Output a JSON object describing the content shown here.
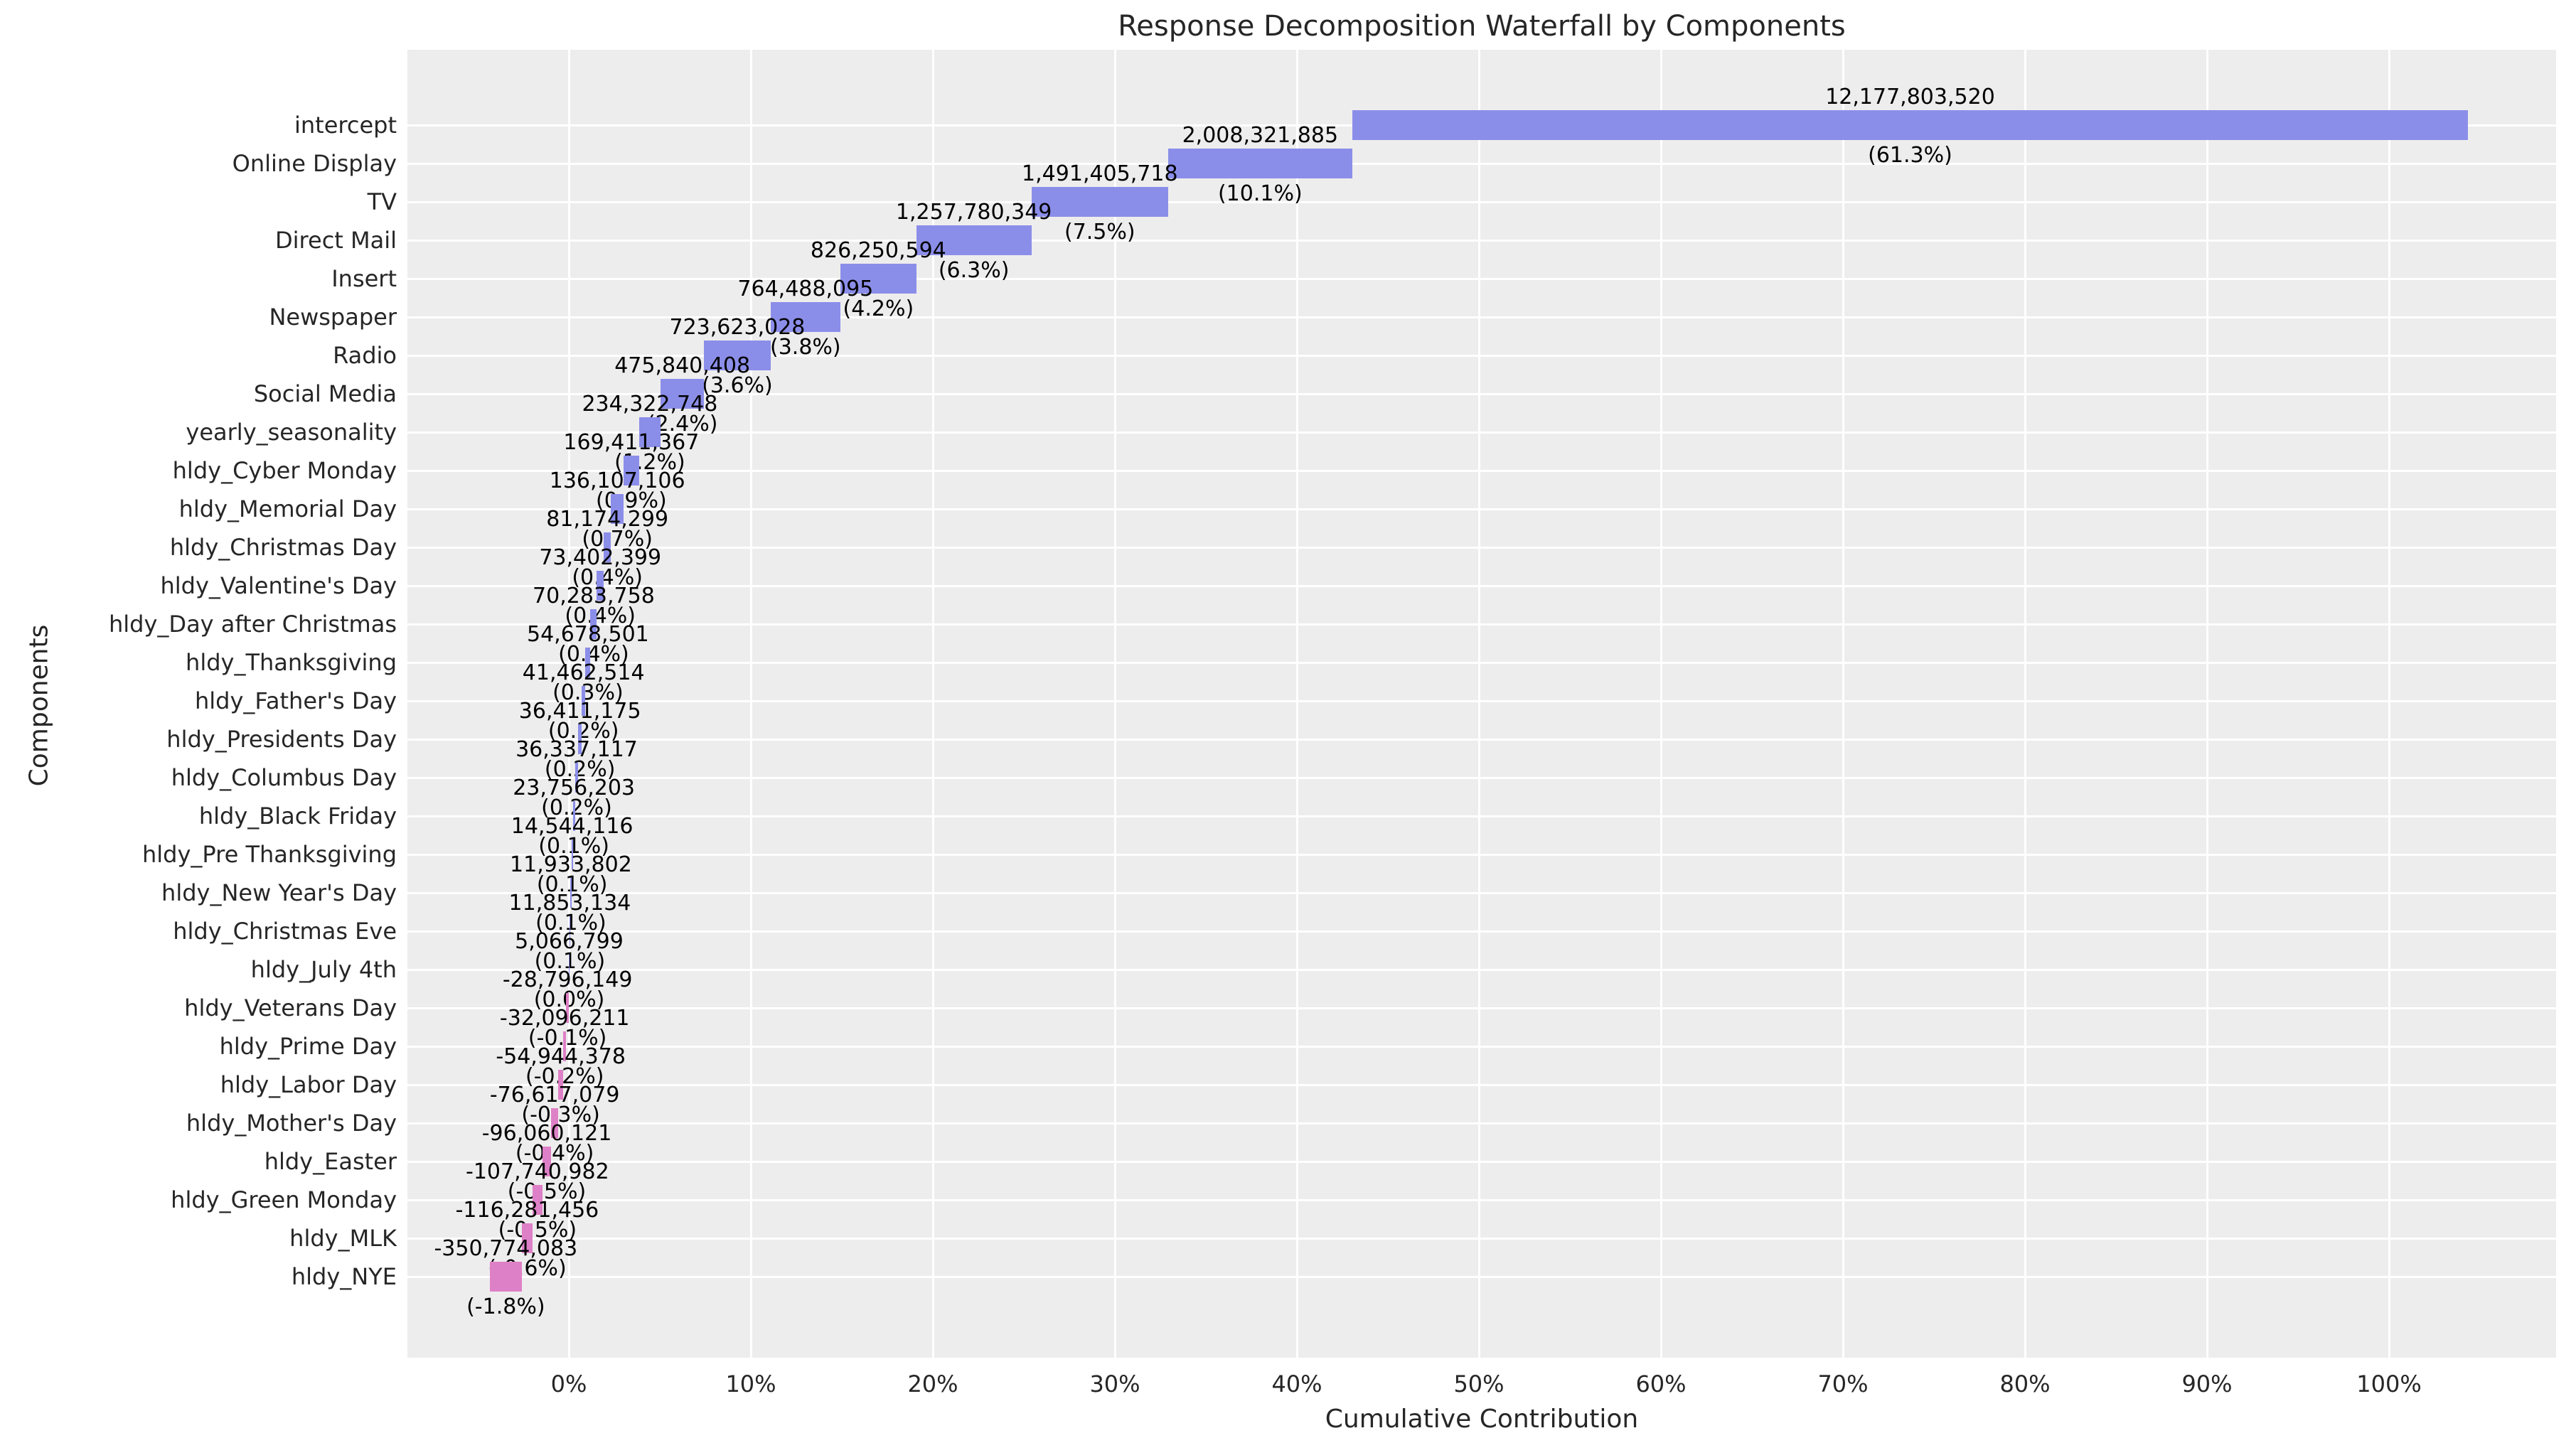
{
  "title": "Response Decomposition Waterfall by Components",
  "axes": {
    "xlabel": "Cumulative Contribution",
    "ylabel": "Components",
    "x_tick_labels": [
      "0%",
      "10%",
      "20%",
      "30%",
      "40%",
      "50%",
      "60%",
      "70%",
      "80%",
      "90%",
      "100%"
    ]
  },
  "colors": {
    "positive_bar": "#8b8ee9",
    "negative_bar": "#de80c7",
    "plot_background": "#eeeded",
    "gridline": "#ffffff",
    "axis_text": "#262626",
    "bar_label_text": "#000000"
  },
  "chart_data": {
    "type": "bar",
    "subtype": "waterfall",
    "orientation": "horizontal",
    "title": "Response Decomposition Waterfall by Components",
    "xlabel": "Cumulative Contribution",
    "ylabel": "Components",
    "x_axis_range_pct": [
      -8.9,
      109.3
    ],
    "x_tick_step_pct": 10,
    "grid": true,
    "legend": false,
    "waterfall_note": "Bars accumulate top-to-bottom; each bar spans [cumulative - value, cumulative]; cumulative starts at the sum of positive components (~104.3% of net total) and ends near -4.3% after negative components.",
    "categories": [
      "intercept",
      "Online Display",
      "TV",
      "Direct Mail",
      "Insert",
      "Newspaper",
      "Radio",
      "Social Media",
      "yearly_seasonality",
      "hldy_Cyber Monday",
      "hldy_Memorial Day",
      "hldy_Christmas Day",
      "hldy_Valentine's Day",
      "hldy_Day after Christmas",
      "hldy_Thanksgiving",
      "hldy_Father's Day",
      "hldy_Presidents Day",
      "hldy_Columbus Day",
      "hldy_Black Friday",
      "hldy_Pre Thanksgiving",
      "hldy_New Year's Day",
      "hldy_Christmas Eve",
      "hldy_July 4th",
      "hldy_Veterans Day",
      "hldy_Prime Day",
      "hldy_Labor Day",
      "hldy_Mother's Day",
      "hldy_Easter",
      "hldy_Green Monday",
      "hldy_MLK",
      "hldy_NYE"
    ],
    "values": [
      12177803520,
      2008321885,
      1491405718,
      1257780349,
      826250594,
      764488095,
      723623028,
      475840408,
      234322748,
      169411367,
      136107106,
      81174299,
      73402399,
      70283758,
      54678501,
      41462514,
      36411175,
      36337117,
      23756203,
      14544116,
      11933802,
      11853134,
      5066799,
      -28796149,
      -32096211,
      -54944378,
      -76617079,
      -96060121,
      -107740982,
      -116281456,
      -350774083
    ],
    "value_labels": [
      "12,177,803,520",
      "2,008,321,885",
      "1,491,405,718",
      "1,257,780,349",
      "826,250,594",
      "764,488,095",
      "723,623,028",
      "475,840,408",
      "234,322,748",
      "169,411,367",
      "136,107,106",
      "81,174,299",
      "73,402,399",
      "70,283,758",
      "54,678,501",
      "41,462,514",
      "36,411,175",
      "36,337,117",
      "23,756,203",
      "14,544,116",
      "11,933,802",
      "11,853,134",
      "5,066,799",
      "-28,796,149",
      "-32,096,211",
      "-54,944,378",
      "-76,617,079",
      "-96,060,121",
      "-107,740,982",
      "-116,281,456",
      "-350,774,083"
    ],
    "pct_labels": [
      "(61.3%)",
      "(10.1%)",
      "(7.5%)",
      "(6.3%)",
      "(4.2%)",
      "(3.8%)",
      "(3.6%)",
      "(2.4%)",
      "(1.2%)",
      "(0.9%)",
      "(0.7%)",
      "(0.4%)",
      "(0.4%)",
      "(0.4%)",
      "(0.3%)",
      "(0.2%)",
      "(0.2%)",
      "(0.2%)",
      "(0.1%)",
      "(0.1%)",
      "(0.1%)",
      "(0.1%)",
      "(0.0%)",
      "(-0.1%)",
      "(-0.2%)",
      "(-0.3%)",
      "(-0.4%)",
      "(-0.5%)",
      "(-0.5%)",
      "(-0.6%)",
      "(-1.8%)"
    ]
  }
}
